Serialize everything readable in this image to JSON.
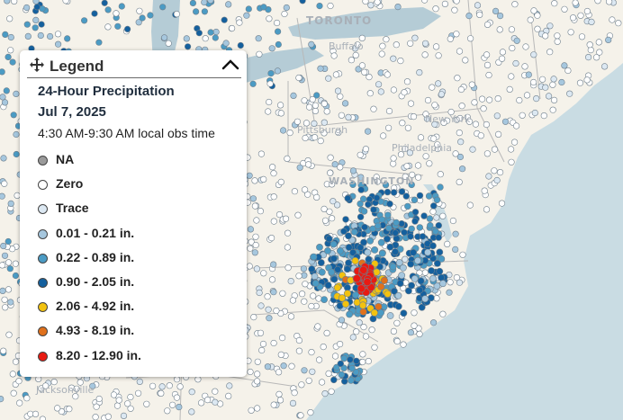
{
  "map": {
    "place_labels": [
      "TORONTO",
      "Buffalo",
      "Pittsburgh",
      "Philadelphia",
      "WASHINGTON",
      "Jacksonville",
      "New York"
    ],
    "colors": {
      "land": "#f5f2ea",
      "water": "#c9dce3",
      "lake": "#b5ccd6",
      "border": "#b8b8b8"
    }
  },
  "legend": {
    "title": "Legend",
    "move_icon": "move-arrows-icon",
    "collapse_icon": "chevron-up-icon",
    "subtitle": "24-Hour Precipitation",
    "date": "Jul 7, 2025",
    "time_range": "4:30 AM-9:30 AM local obs time",
    "items": [
      {
        "label": "NA",
        "color": "#9a9a9a"
      },
      {
        "label": "Zero",
        "color": "#ffffff"
      },
      {
        "label": "Trace",
        "color": "#dce8f2"
      },
      {
        "label": "0.01 - 0.21 in.",
        "color": "#a6c7de"
      },
      {
        "label": "0.22 - 0.89 in.",
        "color": "#4b9bc4"
      },
      {
        "label": "0.90 - 2.05 in.",
        "color": "#14609e"
      },
      {
        "label": "2.06 - 4.92 in.",
        "color": "#f2c20f"
      },
      {
        "label": "4.93 - 8.19 in.",
        "color": "#e0711c"
      },
      {
        "label": "8.20 - 12.90 in.",
        "color": "#e81a12"
      }
    ]
  }
}
